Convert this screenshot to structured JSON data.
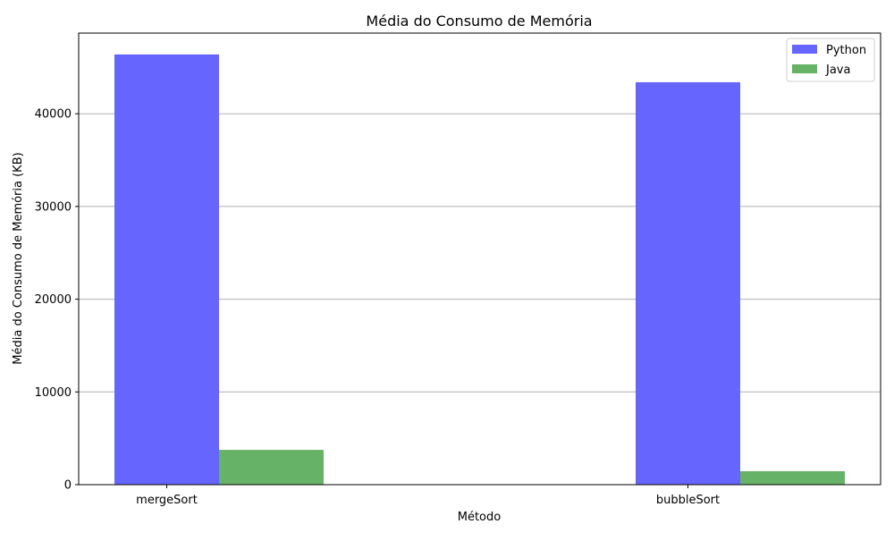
{
  "chart_data": {
    "type": "bar",
    "title": "Média do Consumo de Memória",
    "xlabel": "Método",
    "ylabel": "Média do Consumo de Memória (KB)",
    "categories": [
      "mergeSort",
      "bubbleSort"
    ],
    "series": [
      {
        "name": "Python",
        "values": [
          46400,
          43400
        ],
        "color": "#6666ff"
      },
      {
        "name": "Java",
        "values": [
          3750,
          1450
        ],
        "color": "#66b266"
      }
    ],
    "ylim": [
      0,
      48700
    ],
    "yticks": [
      0,
      10000,
      20000,
      30000,
      40000
    ],
    "grid": "y",
    "legend_position": "top-right"
  }
}
